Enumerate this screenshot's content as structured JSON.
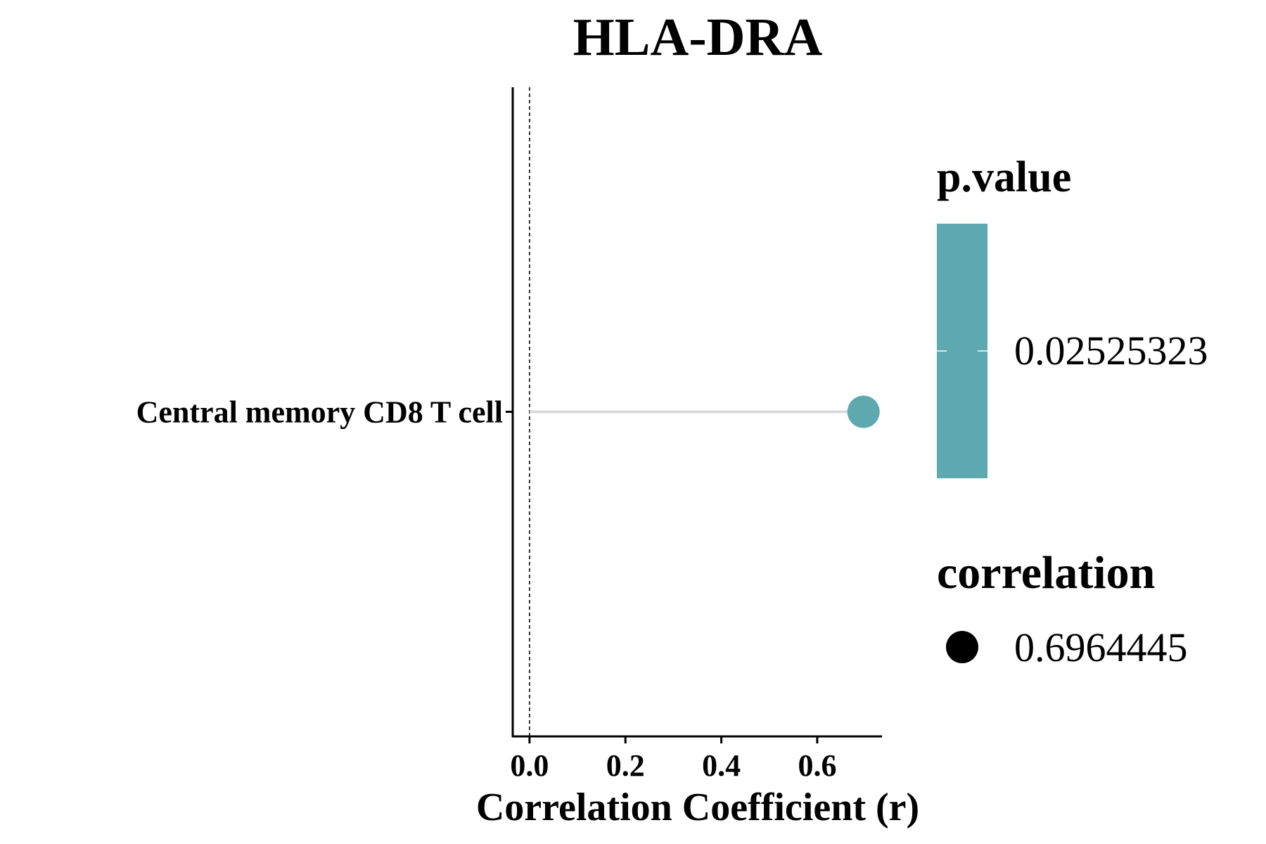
{
  "chart_data": {
    "type": "lollipop",
    "title": "HLA-DRA",
    "xlabel": "Correlation Coefficient (r)",
    "ylabel": "",
    "categories": [
      "Central memory CD8 T cell"
    ],
    "values": [
      0.6964445
    ],
    "p_values": [
      0.02525323
    ],
    "x_ticks": [
      "0.0",
      "0.2",
      "0.4",
      "0.6"
    ],
    "x_tick_values": [
      0,
      0.2,
      0.4,
      0.6
    ],
    "xlim": [
      -0.035,
      0.735
    ],
    "reference_line_x": 0,
    "grid": false,
    "point_color": "#5EA8B0",
    "stem_color": "#D9D9D9",
    "legend_position": "right",
    "legend": {
      "color_title": "p.value",
      "color_label": "0.02525323",
      "color_value": "#5EA8B0",
      "size_title": "correlation",
      "size_label": "0.6964445"
    }
  }
}
